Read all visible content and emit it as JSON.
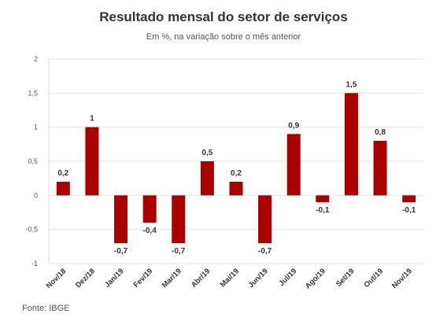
{
  "chart_data": {
    "type": "bar",
    "title": "Resultado mensal do setor de serviços",
    "subtitle": "Em %, na variação sobre o mês anterior",
    "source": "Fonte: IBGE",
    "categories": [
      "Nov/18",
      "Dez/18",
      "Jan/19",
      "Fev/19",
      "Mar/19",
      "Abr/19",
      "Mai/19",
      "Jun/19",
      "Jul/19",
      "Ago/19",
      "Set/19",
      "Out/19",
      "Nov/19"
    ],
    "values": [
      0.2,
      1,
      -0.7,
      -0.4,
      -0.7,
      0.5,
      0.2,
      -0.7,
      0.9,
      -0.1,
      1.5,
      0.8,
      -0.1
    ],
    "data_labels": [
      "0,2",
      "1",
      "-0,7",
      "-0,4",
      "-0,7",
      "0,5",
      "0,2",
      "-0,7",
      "0,9",
      "-0,1",
      "1,5",
      "0,8",
      "-0,1"
    ],
    "y_ticks": [
      2,
      1.5,
      1,
      0.5,
      0,
      -0.5,
      -1
    ],
    "y_tick_labels": [
      "2",
      "1,5",
      "1",
      "0,5",
      "0",
      "-0,5",
      "-1"
    ],
    "ylim": [
      -1,
      2
    ],
    "bar_color": "#aa0000",
    "grid": true
  }
}
